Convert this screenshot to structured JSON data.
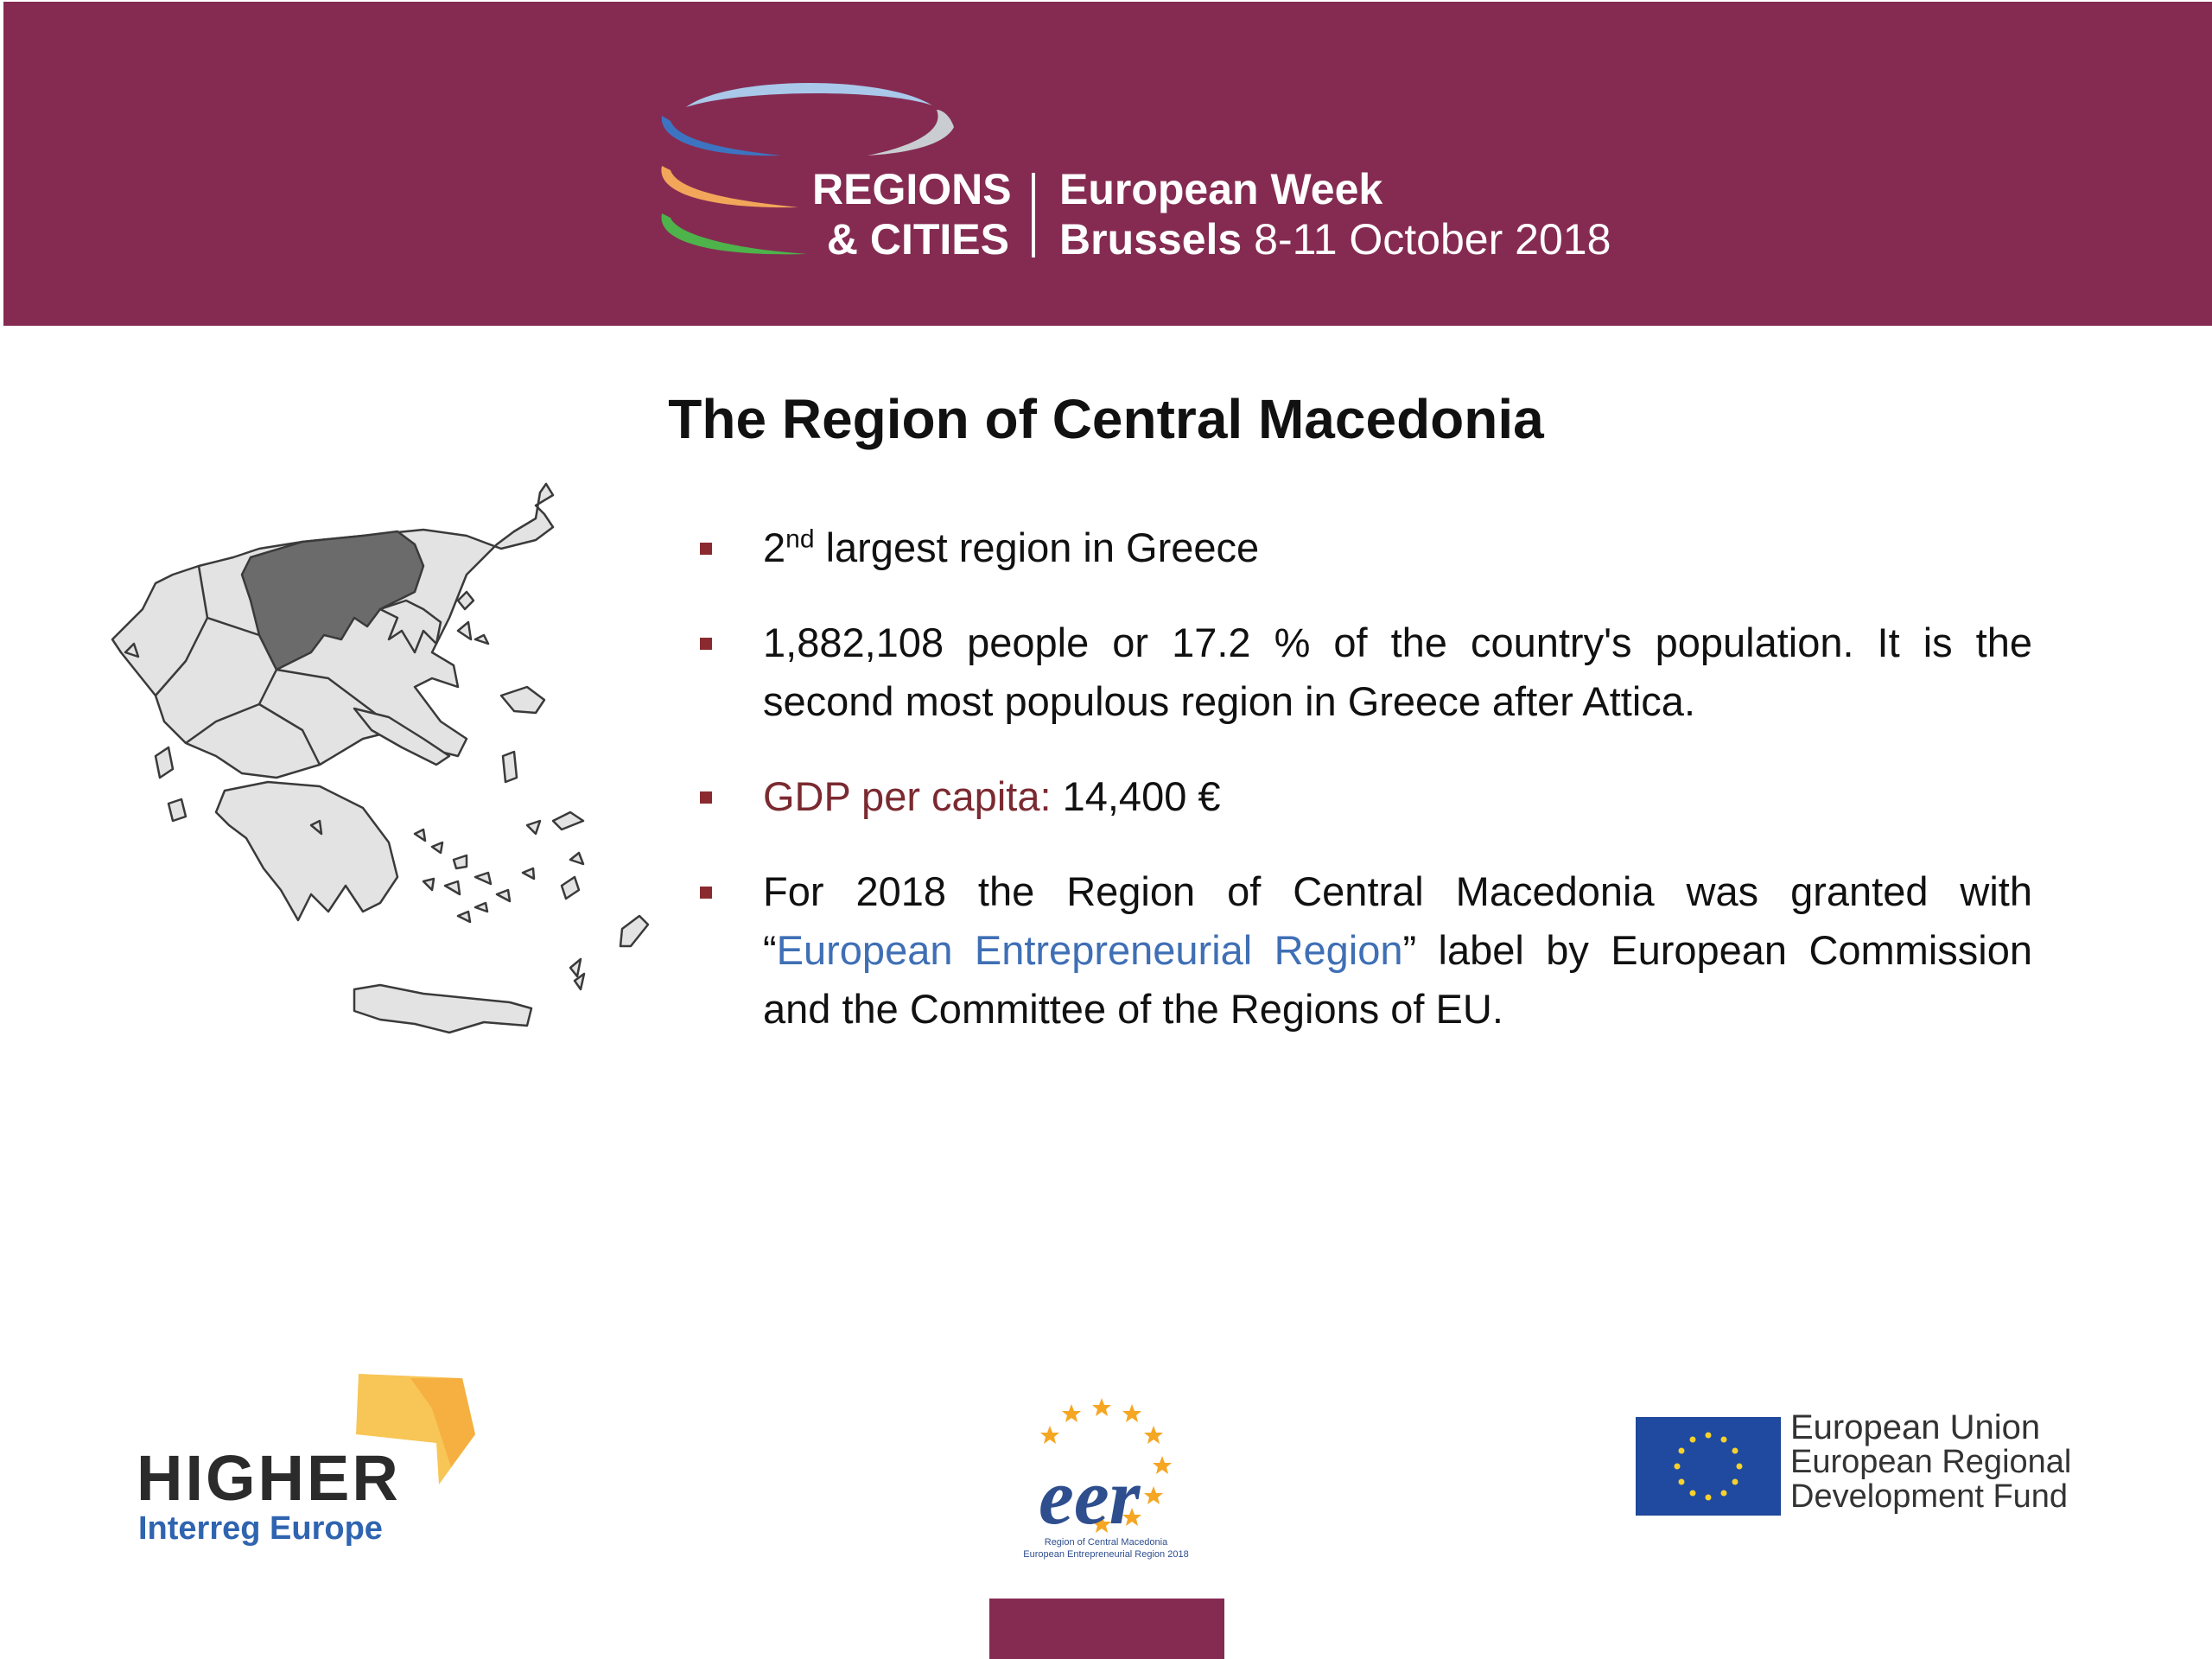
{
  "header": {
    "logo_line1": "REGIONS",
    "logo_line2": "& CITIES",
    "week_label": "European Week",
    "city": "Brussels",
    "dates": "8-11 October 2018"
  },
  "title": "The Region of Central Macedonia",
  "bullets": {
    "b1_num": "2",
    "b1_sup": "nd",
    "b1_text": " largest region in Greece",
    "b2_text": "1,882,108 people or 17.2 % of the country's population. It is the second most populous region in Greece after Attica.",
    "b3_label": "GDP per capita:",
    "b3_value": " 14,400 €",
    "b4_pre": "For 2018 the Region of Central Macedonia was granted with “",
    "b4_link": "European Entrepreneurial Region",
    "b4_post": "” label by European Commission and the Committee of the Regions of EU."
  },
  "logos": {
    "higher": "HIGHER",
    "interreg": "Interreg Europe",
    "eer_caption1": "Region of Central Macedonia",
    "eer_caption2": "European Entrepreneurial Region 2018",
    "eu_line1": "European Union",
    "eu_line2": "European Regional",
    "eu_line3": "Development Fund"
  },
  "colors": {
    "banner": "#852b52",
    "bullet_mark": "#8a2a2f",
    "gdp_label": "#7b2a31",
    "link_blue": "#3f6fb5",
    "map_highlight": "#6b6b6b",
    "map_fill": "#e3e3e3"
  }
}
